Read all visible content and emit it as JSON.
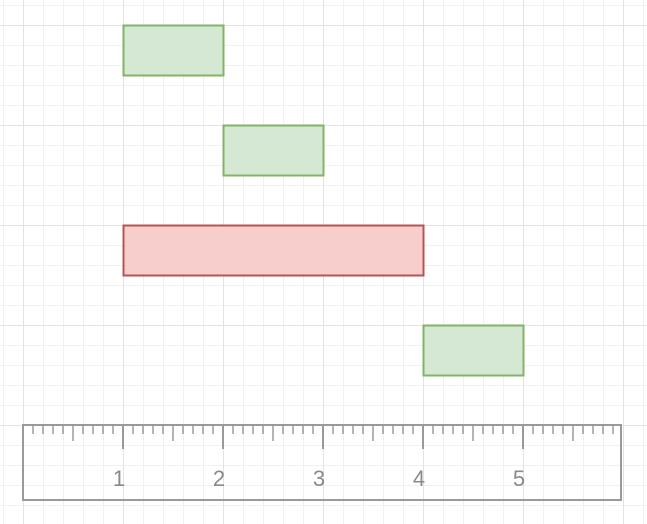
{
  "bars": [
    {
      "start": 1,
      "end": 2,
      "style": "normal"
    },
    {
      "start": 2,
      "end": 3,
      "style": "normal"
    },
    {
      "start": 1,
      "end": 4,
      "style": "highlight"
    },
    {
      "start": 4,
      "end": 5,
      "style": "normal"
    }
  ],
  "ruler": {
    "labels": [
      "1",
      "2",
      "3",
      "4",
      "5"
    ],
    "major_values": [
      1,
      2,
      3,
      4,
      5
    ],
    "min": 0,
    "max": 6,
    "minor_divisions": 10
  },
  "colors": {
    "normal_fill": "#d5e8d4",
    "normal_stroke": "#82b366",
    "highlight_fill": "#f8cecc",
    "highlight_stroke": "#b85450",
    "ruler_stroke": "#9a9a9a",
    "tick_text": "#8a8a8a"
  }
}
